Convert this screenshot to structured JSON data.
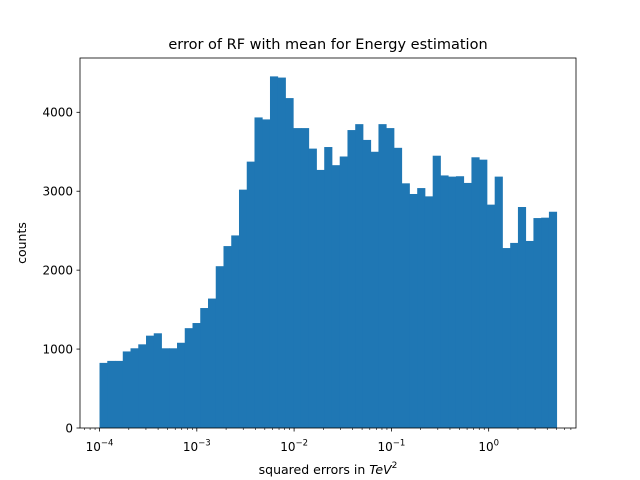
{
  "chart_data": {
    "type": "bar",
    "title": "error of RF with mean for Energy estimation",
    "xlabel": "squared errors in",
    "xlabel_math_base": "TeV",
    "xlabel_math_exp": "2",
    "ylabel": "counts",
    "x_scale": "log",
    "grid": false,
    "bar_color": "#1f77b4",
    "xlim": [
      6.3e-05,
      7.9
    ],
    "ylim": [
      0,
      4688
    ],
    "x_ticks": [
      {
        "value": 0.0001,
        "base": "10",
        "exp": "−4"
      },
      {
        "value": 0.001,
        "base": "10",
        "exp": "−3"
      },
      {
        "value": 0.01,
        "base": "10",
        "exp": "−2"
      },
      {
        "value": 0.1,
        "base": "10",
        "exp": "−1"
      },
      {
        "value": 1,
        "base": "10",
        "exp": "0"
      }
    ],
    "y_ticks": [
      {
        "value": 0,
        "label": "0"
      },
      {
        "value": 1000,
        "label": "1000"
      },
      {
        "value": 2000,
        "label": "2000"
      },
      {
        "value": 3000,
        "label": "3000"
      },
      {
        "value": 4000,
        "label": "4000"
      }
    ],
    "bin_range": [
      0.0001,
      5.0
    ],
    "values": [
      825,
      850,
      850,
      970,
      1010,
      1060,
      1170,
      1200,
      1010,
      1010,
      1080,
      1265,
      1330,
      1520,
      1640,
      2050,
      2305,
      2440,
      3020,
      3375,
      3935,
      3910,
      4455,
      4440,
      4180,
      3800,
      3800,
      3540,
      3270,
      3560,
      3330,
      3440,
      3775,
      3850,
      3650,
      3500,
      3850,
      3800,
      3550,
      3100,
      2965,
      3040,
      2935,
      3450,
      3200,
      3185,
      3190,
      3105,
      3430,
      3400,
      2830,
      3185,
      2280,
      2345,
      2800,
      2370,
      2660,
      2665,
      2740
    ]
  }
}
